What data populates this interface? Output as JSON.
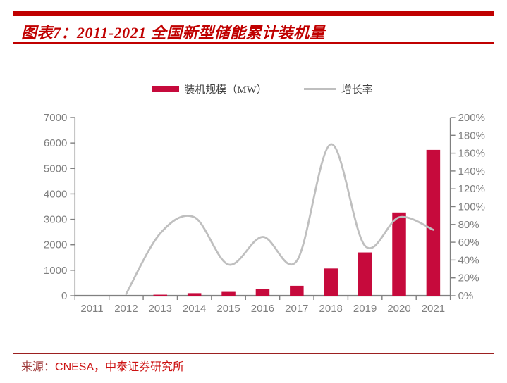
{
  "header": {
    "title": "图表7：2011-2021 全国新型储能累计装机量"
  },
  "legend": {
    "items": [
      {
        "label": "装机规模（MW）",
        "type": "bar"
      },
      {
        "label": "增长率",
        "type": "line"
      }
    ]
  },
  "footer": {
    "source_label": "来源：",
    "source_text": "CNESA，中泰证券研究所"
  },
  "colors": {
    "accent_red": "#C00000",
    "bar_fill": "#C60A3C",
    "growth_line": "#BFBFBF",
    "axis_line": "#808080",
    "tick_text": "#7F7F7F",
    "footer_rule": "#9C2020",
    "source_label": "#9E3A3A",
    "source_text": "#CC1111"
  },
  "chart_data": {
    "type": "bar+line",
    "title": "2011-2021 全国新型储能累计装机量",
    "categories": [
      "2011",
      "2012",
      "2013",
      "2014",
      "2015",
      "2016",
      "2017",
      "2018",
      "2019",
      "2020",
      "2021"
    ],
    "series": [
      {
        "name": "装机规模（MW）",
        "type": "bar",
        "axis": "left",
        "color": "#C60A3C",
        "values": [
          0,
          0,
          40,
          100,
          150,
          250,
          390,
          1070,
          1700,
          3270,
          5730
        ]
      },
      {
        "name": "增长率",
        "type": "line",
        "axis": "right",
        "color": "#BFBFBF",
        "unit": "%",
        "values": [
          null,
          2,
          70,
          88,
          35,
          66,
          39,
          170,
          56,
          88,
          74
        ]
      }
    ],
    "left_axis": {
      "min": 0,
      "max": 7000,
      "step": 1000,
      "tick_labels": [
        "0",
        "1000",
        "2000",
        "3000",
        "4000",
        "5000",
        "6000",
        "7000"
      ]
    },
    "right_axis": {
      "min": 0,
      "max": 200,
      "step": 20,
      "unit": "%",
      "tick_labels": [
        "0%",
        "20%",
        "40%",
        "60%",
        "80%",
        "100%",
        "120%",
        "140%",
        "160%",
        "180%",
        "200%"
      ]
    },
    "grid": false,
    "legend_position": "top-center",
    "line_smooth": true
  }
}
